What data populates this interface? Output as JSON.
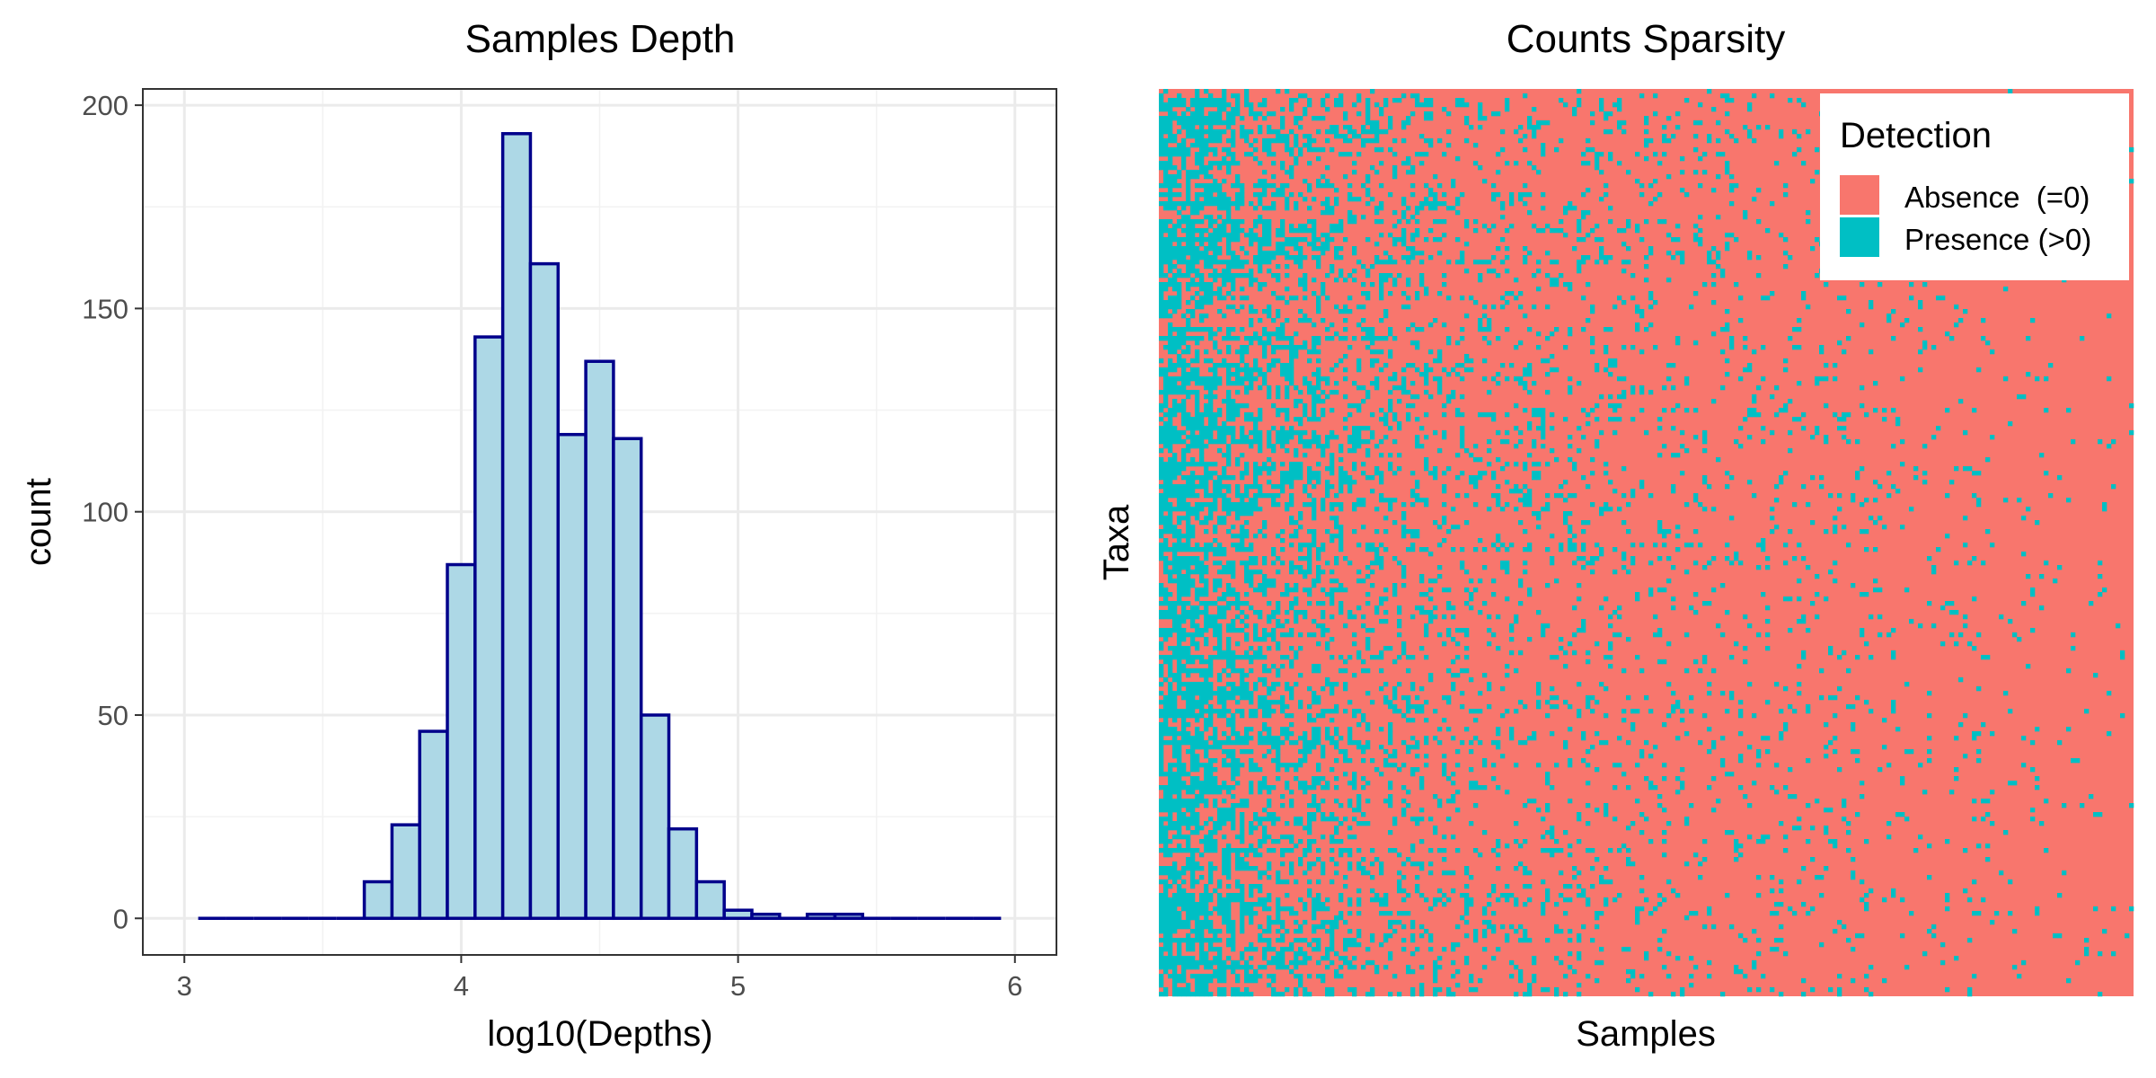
{
  "chart_data": [
    {
      "type": "bar",
      "title": "Samples Depth",
      "xlabel": "log10(Depths)",
      "ylabel": "count",
      "xlim": [
        2.85,
        6.15
      ],
      "ylim": [
        -9,
        204
      ],
      "xticks": [
        3,
        4,
        5,
        6
      ],
      "yticks": [
        0,
        50,
        100,
        150,
        200
      ],
      "grid": true,
      "fill_color": "#add8e6",
      "edge_color": "#00008b",
      "bin_width": 0.1,
      "bins": [
        {
          "x0": 3.05,
          "x1": 3.15,
          "count": 0
        },
        {
          "x0": 3.15,
          "x1": 3.25,
          "count": 0
        },
        {
          "x0": 3.25,
          "x1": 3.35,
          "count": 0
        },
        {
          "x0": 3.35,
          "x1": 3.45,
          "count": 0
        },
        {
          "x0": 3.45,
          "x1": 3.55,
          "count": 0
        },
        {
          "x0": 3.55,
          "x1": 3.65,
          "count": 0
        },
        {
          "x0": 3.65,
          "x1": 3.75,
          "count": 9
        },
        {
          "x0": 3.75,
          "x1": 3.85,
          "count": 23
        },
        {
          "x0": 3.85,
          "x1": 3.95,
          "count": 46
        },
        {
          "x0": 3.95,
          "x1": 4.05,
          "count": 87
        },
        {
          "x0": 4.05,
          "x1": 4.15,
          "count": 143
        },
        {
          "x0": 4.15,
          "x1": 4.25,
          "count": 193
        },
        {
          "x0": 4.25,
          "x1": 4.35,
          "count": 161
        },
        {
          "x0": 4.35,
          "x1": 4.45,
          "count": 119
        },
        {
          "x0": 4.45,
          "x1": 4.55,
          "count": 137
        },
        {
          "x0": 4.55,
          "x1": 4.65,
          "count": 118
        },
        {
          "x0": 4.65,
          "x1": 4.75,
          "count": 50
        },
        {
          "x0": 4.75,
          "x1": 4.85,
          "count": 22
        },
        {
          "x0": 4.85,
          "x1": 4.95,
          "count": 9
        },
        {
          "x0": 4.95,
          "x1": 5.05,
          "count": 2
        },
        {
          "x0": 5.05,
          "x1": 5.15,
          "count": 1
        },
        {
          "x0": 5.15,
          "x1": 5.25,
          "count": 0
        },
        {
          "x0": 5.25,
          "x1": 5.35,
          "count": 1
        },
        {
          "x0": 5.35,
          "x1": 5.45,
          "count": 1
        },
        {
          "x0": 5.45,
          "x1": 5.55,
          "count": 0
        },
        {
          "x0": 5.55,
          "x1": 5.65,
          "count": 0
        },
        {
          "x0": 5.65,
          "x1": 5.75,
          "count": 0
        },
        {
          "x0": 5.75,
          "x1": 5.85,
          "count": 0
        },
        {
          "x0": 5.85,
          "x1": 5.95,
          "count": 0
        }
      ]
    },
    {
      "type": "heatmap",
      "title": "Counts Sparsity",
      "xlabel": "Samples",
      "ylabel": "Taxa",
      "legend": {
        "title": "Detection",
        "position": "top-right",
        "entries": [
          {
            "label": "Absence  (=0)",
            "color": "#f8766d"
          },
          {
            "label": "Presence (>0)",
            "color": "#00bfc4"
          }
        ]
      },
      "presence_fraction_by_sample_decile": [
        0.65,
        0.32,
        0.2,
        0.14,
        0.11,
        0.08,
        0.07,
        0.05,
        0.03,
        0.02
      ]
    }
  ]
}
